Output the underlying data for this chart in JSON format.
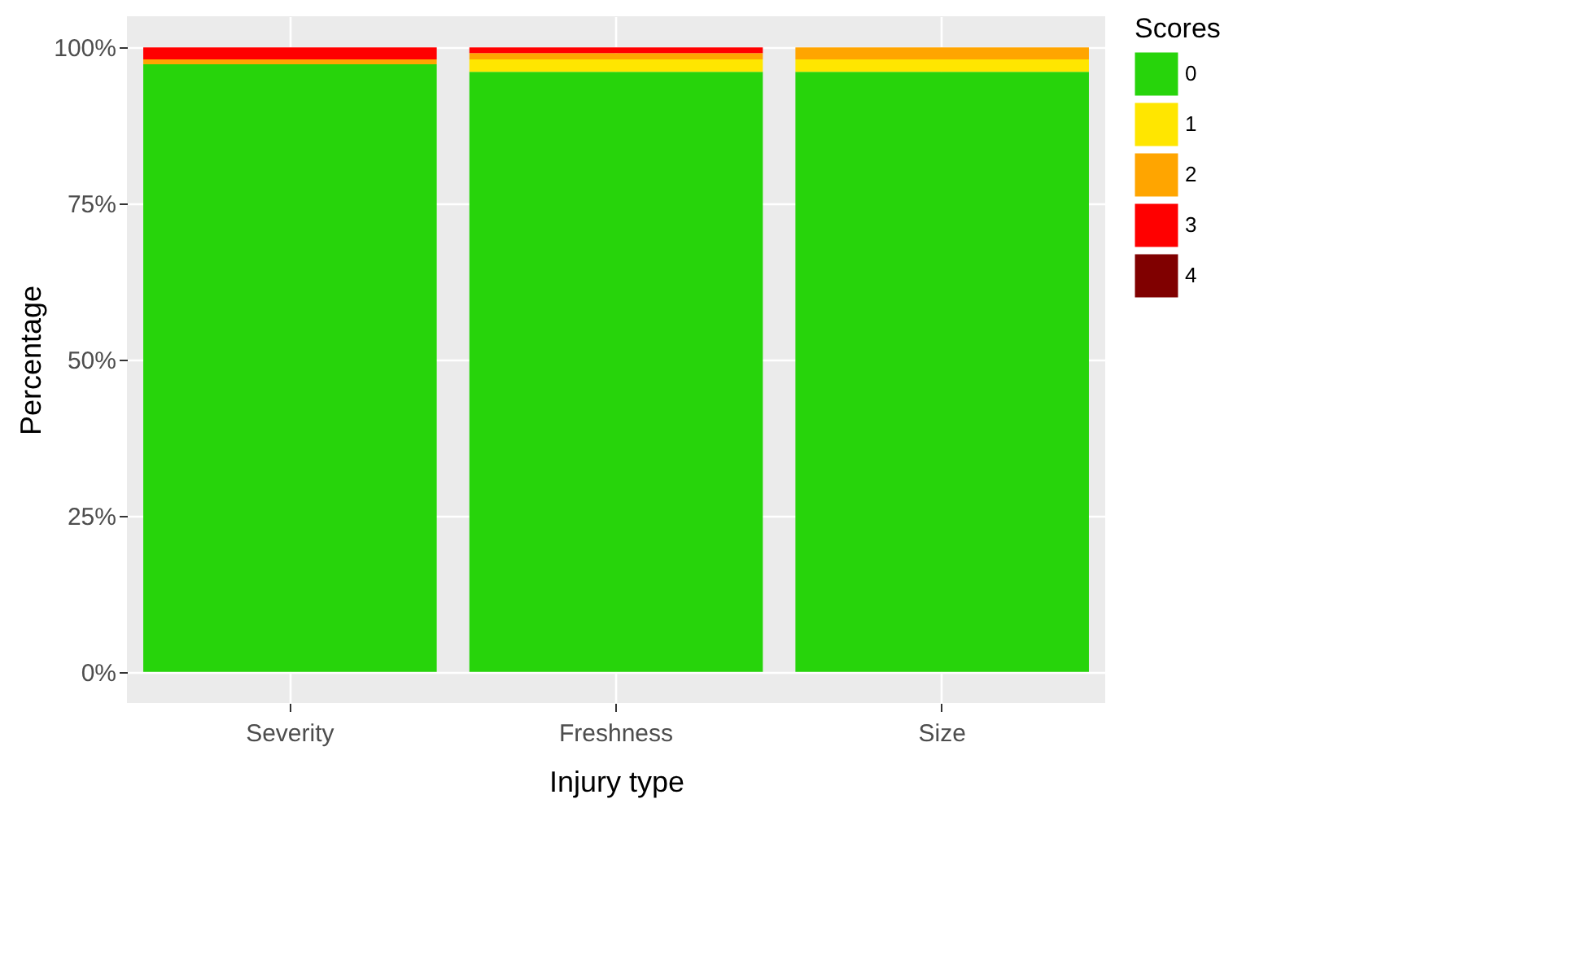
{
  "chart_data": {
    "type": "bar",
    "stacked": true,
    "xlabel": "Injury type",
    "ylabel": "Percentage",
    "legend_title": "Scores",
    "legend": "right",
    "grid": true,
    "categories": [
      "Severity",
      "Freshness",
      "Size"
    ],
    "series": [
      {
        "name": "0",
        "color": "#27d40b",
        "values": [
          97.3,
          96.1,
          96.1
        ]
      },
      {
        "name": "1",
        "color": "#ffe600",
        "values": [
          0,
          2.0,
          2.0
        ]
      },
      {
        "name": "2",
        "color": "#ffa500",
        "values": [
          0.8,
          1.0,
          1.9
        ]
      },
      {
        "name": "3",
        "color": "#ff0000",
        "values": [
          1.9,
          0.9,
          0
        ]
      },
      {
        "name": "4",
        "color": "#800000",
        "values": [
          0,
          0,
          0
        ]
      }
    ],
    "ylim": [
      -5,
      105
    ],
    "yticks": [
      {
        "value": 0,
        "label": "0%"
      },
      {
        "value": 25,
        "label": "25%"
      },
      {
        "value": 50,
        "label": "50%"
      },
      {
        "value": 75,
        "label": "75%"
      },
      {
        "value": 100,
        "label": "100%"
      }
    ]
  }
}
